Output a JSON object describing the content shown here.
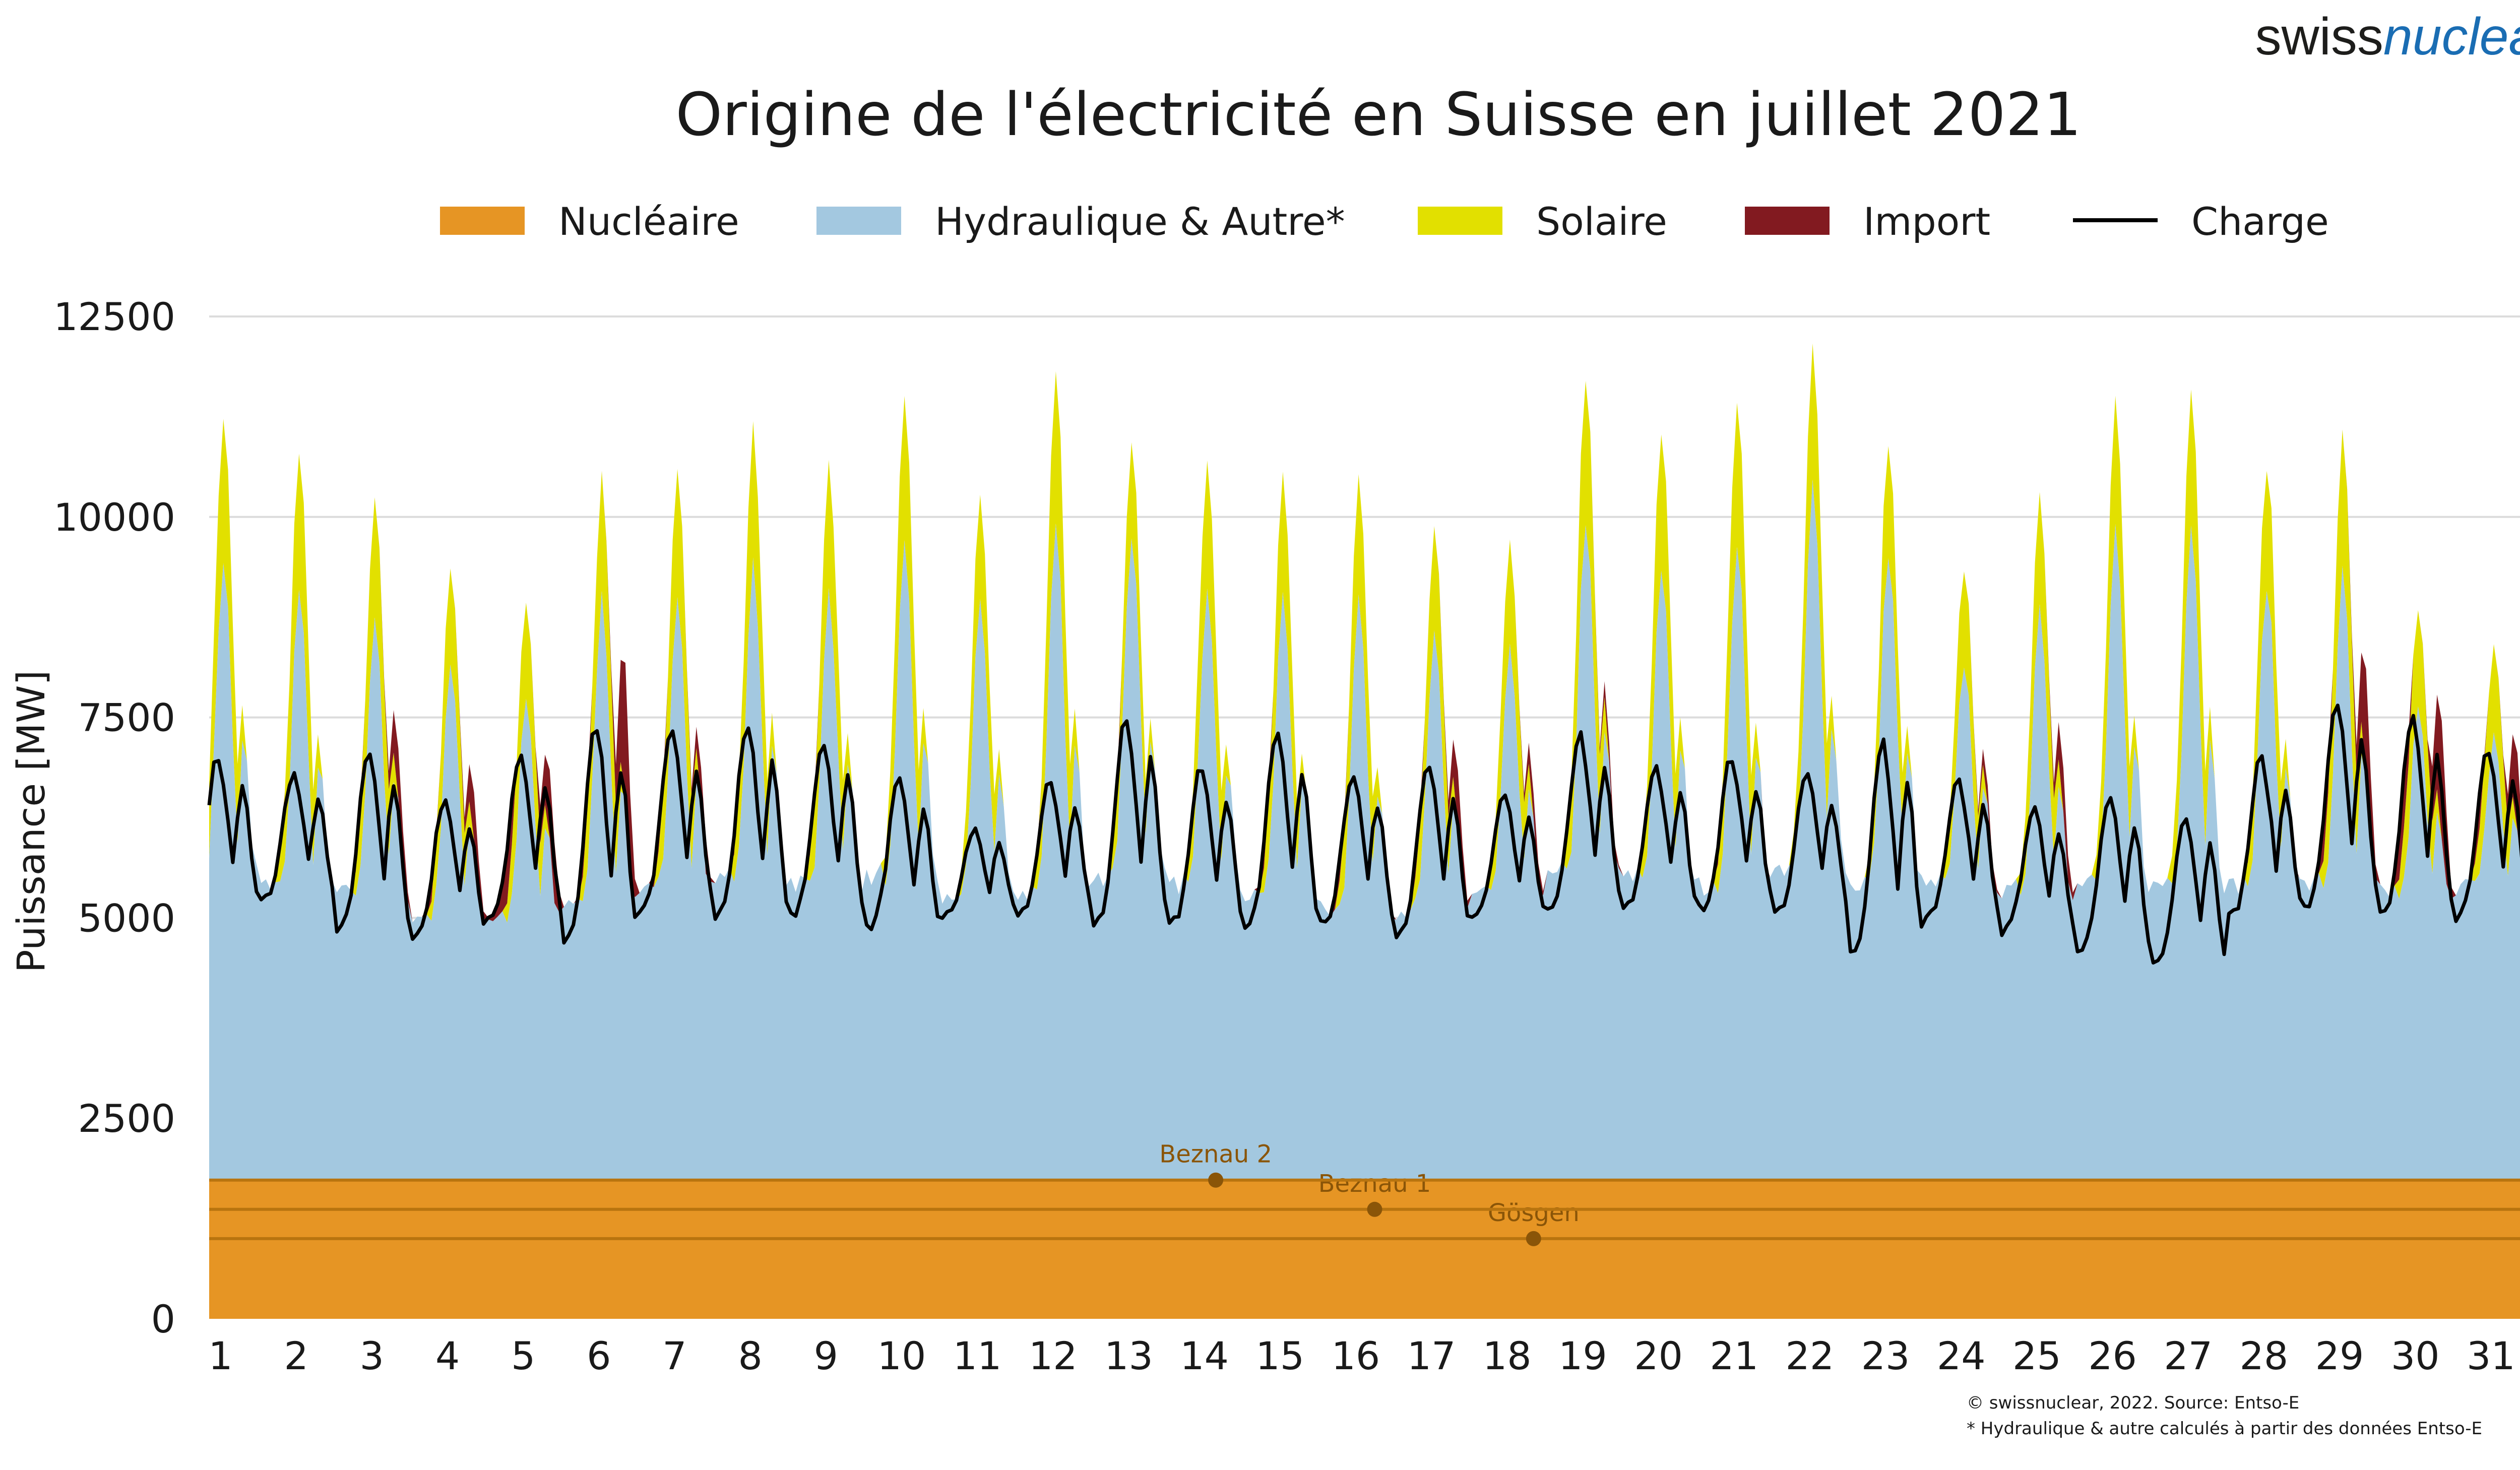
{
  "logo": {
    "part1": "swiss",
    "part2": "nuclear"
  },
  "chart_data": {
    "type": "area",
    "title": "Origine de l'électricité en Suisse en juillet 2021",
    "xlabel": "",
    "ylabel": "Puissance [MW]",
    "ylim": [
      0,
      12500
    ],
    "xlim": [
      0.85,
      31.85
    ],
    "yticks": [
      0,
      2500,
      5000,
      7500,
      10000,
      12500
    ],
    "yticklabels": [
      "0",
      "2500",
      "5000",
      "7500",
      "10000",
      "12500"
    ],
    "xticks": [
      1,
      2,
      3,
      4,
      5,
      6,
      7,
      8,
      9,
      10,
      11,
      12,
      13,
      14,
      15,
      16,
      17,
      18,
      19,
      20,
      21,
      22,
      23,
      24,
      25,
      26,
      27,
      28,
      29,
      30,
      31
    ],
    "xticklabels": [
      "1",
      "2",
      "3",
      "4",
      "5",
      "6",
      "7",
      "8",
      "9",
      "10",
      "11",
      "12",
      "13",
      "14",
      "15",
      "16",
      "17",
      "18",
      "19",
      "20",
      "21",
      "22",
      "23",
      "24",
      "25",
      "26",
      "27",
      "28",
      "29",
      "30",
      "31"
    ],
    "grid": "horizontal",
    "legend_position": "top",
    "legend": [
      {
        "label": "Nucléaire",
        "kind": "patch",
        "color": "#e69524"
      },
      {
        "label": "Hydraulique & Autre*",
        "kind": "patch",
        "color": "#a3c8e0"
      },
      {
        "label": "Solaire",
        "kind": "patch",
        "color": "#e2e000"
      },
      {
        "label": "Import",
        "kind": "patch",
        "color": "#821a20"
      },
      {
        "label": "Charge",
        "kind": "line",
        "color": "#000000"
      }
    ],
    "nuclear_units": [
      {
        "name": "Gösgen",
        "level": 1000,
        "marker_x": 18.35
      },
      {
        "name": "Beznau 1",
        "level": 1365,
        "marker_x": 16.25
      },
      {
        "name": "Beznau 2",
        "level": 1730,
        "marker_x": 14.15
      }
    ],
    "daily": {
      "production_peak": [
        11300,
        10800,
        10300,
        9400,
        8900,
        10500,
        10500,
        11100,
        10700,
        11400,
        10300,
        11900,
        11000,
        10800,
        10500,
        10500,
        9800,
        9600,
        11800,
        11100,
        11500,
        12100,
        11000,
        9400,
        10300,
        11400,
        11700,
        10700,
        11000,
        8800,
        8400
      ],
      "production_base": [
        5600,
        5400,
        5300,
        5000,
        5000,
        5200,
        5400,
        5500,
        5400,
        5500,
        5200,
        5300,
        5500,
        5400,
        5300,
        5100,
        5100,
        5300,
        5500,
        5500,
        5400,
        5600,
        5400,
        5400,
        5300,
        5400,
        5400,
        5400,
        5400,
        5300,
        5400
      ],
      "solar_peak": [
        1800,
        1700,
        1500,
        1200,
        1200,
        1500,
        1600,
        1700,
        1600,
        1800,
        1300,
        1900,
        1200,
        1600,
        1500,
        1500,
        1300,
        1300,
        1800,
        1700,
        1800,
        1700,
        1400,
        1200,
        1400,
        1600,
        1700,
        1500,
        1700,
        1200,
        1100
      ],
      "load_peak": [
        7000,
        6800,
        7100,
        6500,
        7000,
        7400,
        7300,
        7400,
        7200,
        6700,
        6100,
        6700,
        7500,
        6900,
        7300,
        6800,
        6900,
        6500,
        7300,
        6900,
        7000,
        6800,
        7200,
        6700,
        6400,
        6500,
        6300,
        7000,
        7700,
        7500,
        7100
      ],
      "load_min": [
        5100,
        5200,
        4800,
        4750,
        5000,
        4700,
        5100,
        5000,
        5000,
        4850,
        5000,
        5050,
        4900,
        4900,
        4900,
        4900,
        4800,
        5000,
        5050,
        5100,
        5100,
        5050,
        4550,
        5000,
        4800,
        4550,
        4400,
        5000,
        5100,
        5000,
        5000
      ],
      "import_peak": [
        0,
        0,
        800,
        700,
        500,
        1700,
        400,
        0,
        0,
        0,
        0,
        0,
        0,
        0,
        0,
        0,
        700,
        400,
        300,
        0,
        0,
        0,
        0,
        300,
        700,
        0,
        0,
        0,
        1300,
        900,
        700
      ]
    },
    "footnote": {
      "line1": "© swissnuclear, 2022. Source: Entso-E",
      "line2": "* Hydraulique & autre calculés à partir des données Entso-E"
    }
  }
}
